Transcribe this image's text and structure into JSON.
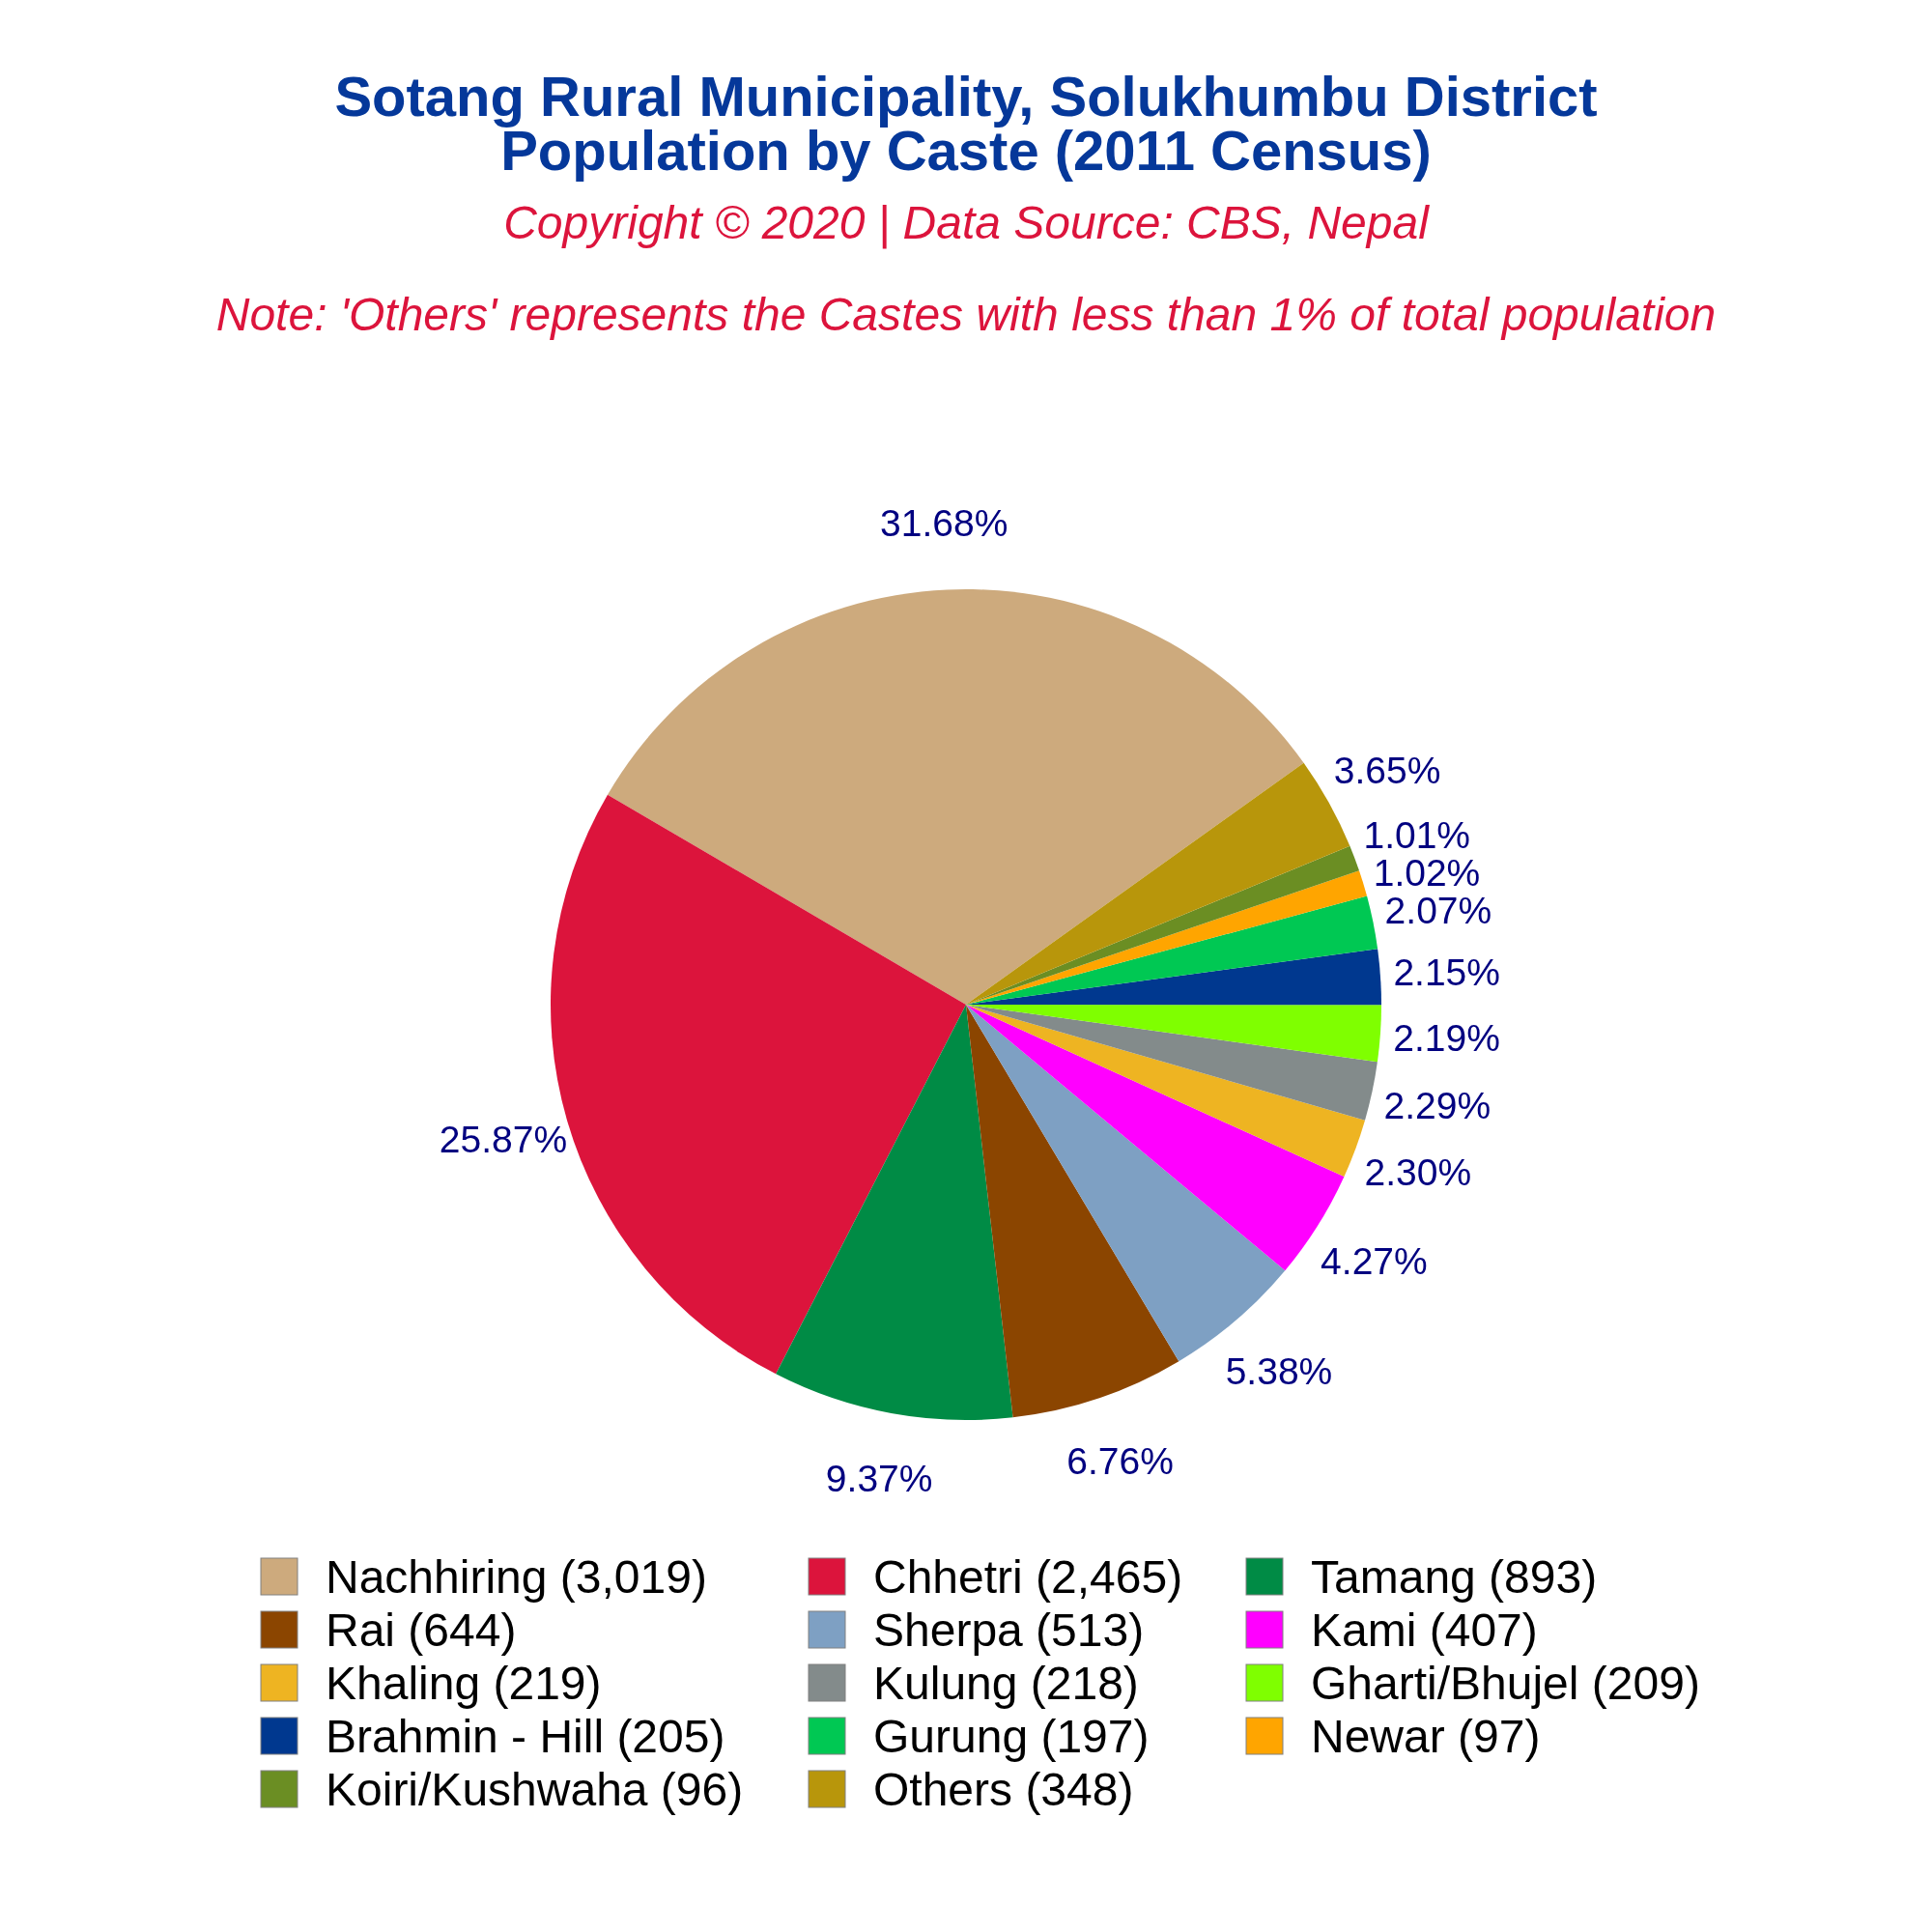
{
  "chart_data": {
    "type": "pie",
    "title": "Sotang Rural Municipality, Solukhumbu District\nPopulation by Caste (2011 Census)",
    "subtitle": "Copyright © 2020 | Data Source: CBS, Nepal",
    "annotations": [
      "Note: 'Others' represents the Castes with less than 1% of total population"
    ],
    "categories": [
      "Nachhiring (3,019)",
      "Chhetri (2,465)",
      "Tamang (893)",
      "Rai (644)",
      "Sherpa (513)",
      "Kami (407)",
      "Khaling (219)",
      "Kulung (218)",
      "Gharti/Bhujel (209)",
      "Brahmin - Hill (205)",
      "Gurung (197)",
      "Newar (97)",
      "Koiri/Kushwaha (96)",
      "Others (348)"
    ],
    "values": [
      31.68,
      25.87,
      9.37,
      6.76,
      5.38,
      4.27,
      2.3,
      2.29,
      2.19,
      2.15,
      2.07,
      1.02,
      1.01,
      3.65
    ],
    "value_labels": [
      "31.68%",
      "25.87%",
      "9.37%",
      "6.76%",
      "5.38%",
      "4.27%",
      "2.30%",
      "2.29%",
      "2.19%",
      "2.15%",
      "2.07%",
      "1.02%",
      "1.01%",
      "3.65%"
    ],
    "colors": [
      "#cdaa7d",
      "#dc143c",
      "#008b45",
      "#8b4500",
      "#7ea0c3",
      "#ff00ff",
      "#eeb422",
      "#838b8b",
      "#7fff00",
      "#00388f",
      "#00c853",
      "#ffa500",
      "#6b8e23",
      "#b8960b"
    ],
    "legend": "bottom"
  }
}
